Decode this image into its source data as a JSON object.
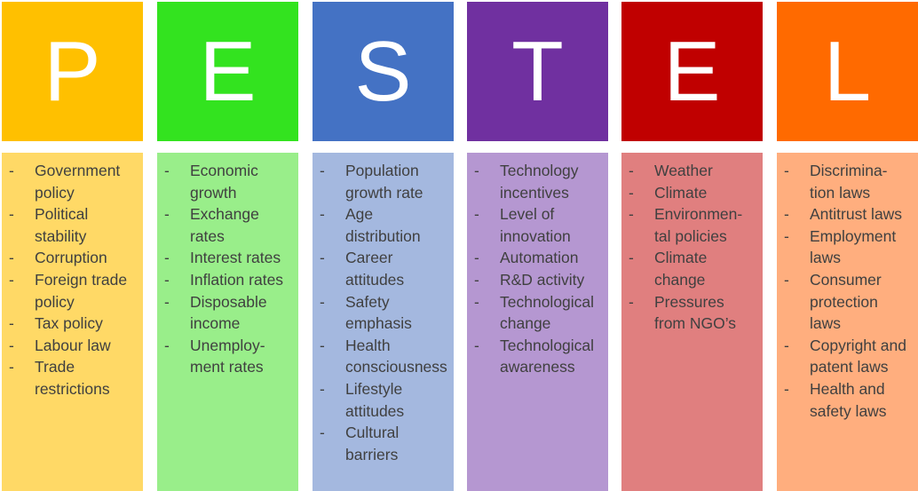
{
  "columns": [
    {
      "letter": "P",
      "header_color": "#FFC000",
      "body_color": "#FFD966",
      "items": [
        "Government\npolicy",
        "Political\nstability",
        "Corruption",
        "Foreign trade\npolicy",
        "Tax policy",
        "Labour law",
        "Trade\nrestrictions"
      ]
    },
    {
      "letter": "E",
      "header_color": "#33E31F",
      "body_color": "#99EE8A",
      "items": [
        "Economic\ngrowth",
        "Exchange\nrates",
        "Interest rates",
        "Inflation rates",
        "Disposable\nincome",
        "Unemploy-\nment rates"
      ]
    },
    {
      "letter": "S",
      "header_color": "#4472C4",
      "body_color": "#A4B8DF",
      "items": [
        "Population\ngrowth rate",
        "Age\ndistribution",
        "Career\nattitudes",
        "Safety\nemphasis",
        "Health\nconsciousness",
        "Lifestyle\nattitudes",
        "Cultural\nbarriers"
      ]
    },
    {
      "letter": "T",
      "header_color": "#7030A0",
      "body_color": "#B597D1",
      "items": [
        "Technology\nincentives",
        "Level of\ninnovation",
        "Automation",
        "R&D activity",
        "Technological\nchange",
        "Technological\nawareness"
      ]
    },
    {
      "letter": "E",
      "header_color": "#C00000",
      "body_color": "#E07F7F",
      "items": [
        "Weather",
        "Climate",
        "Environmen-\ntal policies",
        "Climate\nchange",
        "Pressures\nfrom NGO’s"
      ]
    },
    {
      "letter": "L",
      "header_color": "#FF6A00",
      "body_color": "#FFAE7E",
      "items": [
        "Discrimina-\ntion laws",
        "Antitrust laws",
        "Employment\nlaws",
        "Consumer\nprotection\nlaws",
        "Copyright and\npatent laws",
        "Health and\nsafety laws"
      ]
    }
  ],
  "bullet_symbol": "-"
}
